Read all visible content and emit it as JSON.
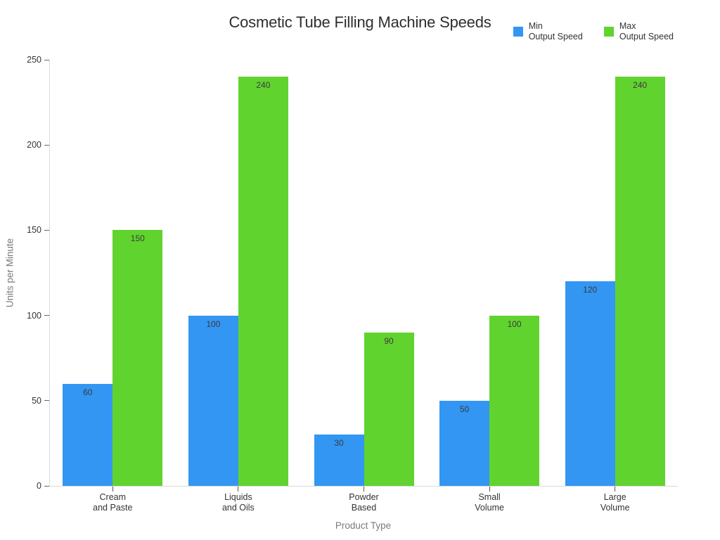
{
  "chart_data": {
    "type": "bar",
    "title": "Cosmetic Tube Filling Machine Speeds",
    "xlabel": "Product Type",
    "ylabel": "Units per Minute",
    "categories": [
      "Cream\nand Paste",
      "Liquids\nand Oils",
      "Powder\nBased",
      "Small\nVolume",
      "Large\nVolume"
    ],
    "series": [
      {
        "name": "Min\nOutput Speed",
        "color": "#3396F3",
        "values": [
          60,
          100,
          30,
          50,
          120
        ]
      },
      {
        "name": "Max\nOutput Speed",
        "color": "#61D32F",
        "values": [
          150,
          240,
          90,
          100,
          240
        ]
      }
    ],
    "ylim": [
      0,
      250
    ],
    "yticks": [
      0,
      50,
      100,
      150,
      200,
      250
    ],
    "grid": false,
    "legend_position": "top-right",
    "bar_value_labels": true,
    "colors": {
      "axis_line": "#d9d9d9",
      "tick": "#666666",
      "tick_label": "#333333",
      "axis_title": "#7b7b7b",
      "title": "#2e2e2e"
    }
  }
}
